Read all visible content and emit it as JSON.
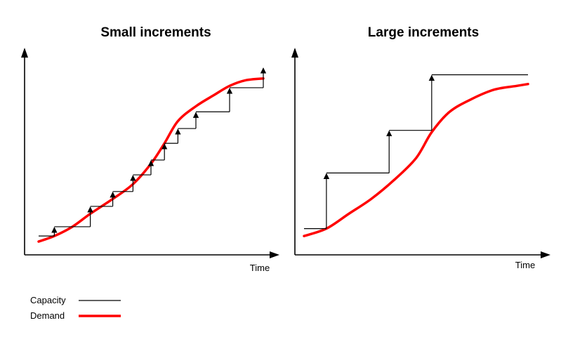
{
  "chart_data": [
    {
      "type": "line",
      "title": "Small increments",
      "xlabel": "Time",
      "ylabel": "",
      "grid": false,
      "legend": "bottom-left",
      "series": [
        {
          "name": "Capacity",
          "kind": "step",
          "x": [
            0,
            7,
            23,
            33,
            42,
            50,
            56,
            62,
            70,
            85,
            100
          ],
          "y": [
            6,
            11,
            22,
            30,
            39,
            47,
            56,
            64,
            73,
            86,
            97
          ]
        },
        {
          "name": "Demand",
          "kind": "curve",
          "x": [
            0,
            7,
            15,
            23,
            33,
            42,
            50,
            56,
            62,
            70,
            78,
            85,
            92,
            100
          ],
          "y": [
            3,
            6,
            11,
            18,
            26,
            34,
            45,
            56,
            68,
            76,
            82,
            87,
            90,
            91
          ]
        }
      ],
      "xlim": [
        0,
        100
      ],
      "ylim": [
        0,
        100
      ]
    },
    {
      "type": "line",
      "title": "Large increments",
      "xlabel": "Time",
      "ylabel": "",
      "grid": false,
      "legend": "bottom-left",
      "series": [
        {
          "name": "Capacity",
          "kind": "step",
          "x": [
            0,
            10,
            38,
            57,
            100
          ],
          "y": [
            10,
            40,
            63,
            93,
            93
          ]
        },
        {
          "name": "Demand",
          "kind": "curve",
          "x": [
            0,
            10,
            20,
            30,
            40,
            50,
            57,
            65,
            75,
            85,
            95,
            100
          ],
          "y": [
            6,
            10,
            18,
            26,
            36,
            48,
            62,
            73,
            80,
            85,
            87,
            88
          ]
        }
      ],
      "xlim": [
        0,
        100
      ],
      "ylim": [
        0,
        100
      ]
    }
  ],
  "legend": {
    "items": [
      {
        "label": "Capacity",
        "color": "#000000"
      },
      {
        "label": "Demand",
        "color": "#ff0000"
      }
    ]
  },
  "colors": {
    "capacity": "#000000",
    "demand": "#ff0000"
  }
}
